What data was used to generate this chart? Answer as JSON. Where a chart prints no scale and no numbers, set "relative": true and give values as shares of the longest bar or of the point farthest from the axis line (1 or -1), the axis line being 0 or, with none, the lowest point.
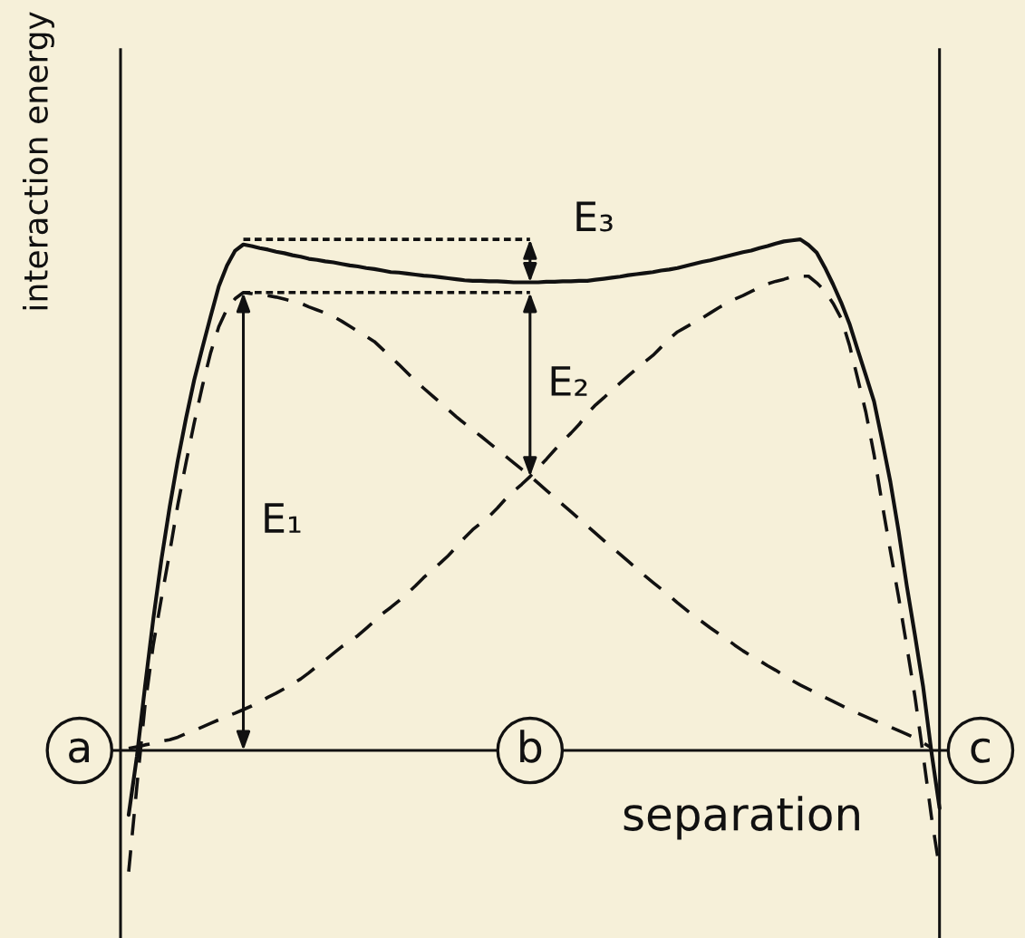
{
  "chart_data": {
    "type": "line",
    "relative": true,
    "ylabel": "interaction energy",
    "xlabel": "separation",
    "tick_labels": "x",
    "categories": [
      "a",
      null,
      null,
      null,
      null,
      null,
      null,
      null,
      null,
      null,
      null,
      null,
      null,
      null,
      null,
      null,
      null,
      null,
      null,
      null,
      null,
      null,
      null,
      null,
      null,
      null,
      null,
      null,
      null,
      null,
      null,
      null,
      null,
      null,
      null,
      null,
      null,
      null,
      null,
      null,
      null,
      null,
      null,
      null,
      null,
      null,
      null,
      null,
      null,
      null,
      null,
      null,
      null,
      null,
      null,
      "b",
      null,
      null,
      null,
      null,
      null,
      null,
      null,
      null,
      null,
      null,
      null,
      null,
      null,
      null,
      null,
      null,
      null,
      null,
      null,
      null,
      null,
      null,
      null,
      null,
      null,
      null,
      null,
      null,
      null,
      null,
      null,
      null,
      null,
      null,
      null,
      null,
      null,
      null,
      null,
      null,
      null,
      null,
      null,
      null,
      null,
      null,
      null,
      null,
      null,
      null,
      null,
      null,
      null,
      null,
      "c"
    ],
    "series": [
      {
        "color": "#111111",
        "line_style": "solid",
        "values": [
          null,
          null,
          null,
          null,
          null,
          null,
          -0.126,
          -0.012,
          0.126,
          0.257,
          0.374,
          0.476,
          0.568,
          0.65,
          0.725,
          0.788,
          0.849,
          0.908,
          0.949,
          0.978,
          0.99,
          0.987,
          0.983,
          0.98,
          0.976,
          0.973,
          0.969,
          0.966,
          0.962,
          0.96,
          0.957,
          0.955,
          0.952,
          0.949,
          0.947,
          0.944,
          0.942,
          0.939,
          0.936,
          0.935,
          0.933,
          0.931,
          0.929,
          0.928,
          0.926,
          0.924,
          0.922,
          0.92,
          0.919,
          0.919,
          0.918,
          0.918,
          0.917,
          0.916,
          0.916,
          0.916,
          0.916,
          0.917,
          0.917,
          0.918,
          0.918,
          0.919,
          0.919,
          0.921,
          0.923,
          0.925,
          0.927,
          0.93,
          0.932,
          0.934,
          0.936,
          0.939,
          0.941,
          0.944,
          0.948,
          0.952,
          0.956,
          0.959,
          0.963,
          0.967,
          0.971,
          0.975,
          0.978,
          0.983,
          0.987,
          0.992,
          0.996,
          0.998,
          1.0,
          0.989,
          0.974,
          0.945,
          0.912,
          0.876,
          0.835,
          0.784,
          0.734,
          0.683,
          0.606,
          0.525,
          0.429,
          0.322,
          0.225,
          0.124,
          -0.002,
          -0.113,
          null,
          null,
          null,
          null,
          null
        ]
      },
      {
        "color": "#111111",
        "line_style": "dashed",
        "values": [
          null,
          null,
          null,
          null,
          null,
          null,
          -0.237,
          -0.07,
          0.089,
          0.206,
          0.298,
          0.387,
          0.481,
          0.563,
          0.641,
          0.713,
          0.778,
          0.829,
          0.864,
          0.884,
          0.896,
          0.894,
          0.892,
          0.89,
          0.887,
          0.883,
          0.879,
          0.875,
          0.868,
          0.862,
          0.856,
          0.849,
          0.84,
          0.83,
          0.82,
          0.81,
          0.8,
          0.785,
          0.77,
          0.755,
          0.739,
          0.723,
          0.709,
          0.695,
          0.681,
          0.667,
          0.653,
          0.64,
          0.627,
          0.615,
          0.602,
          0.589,
          0.576,
          0.563,
          0.55,
          0.537,
          0.523,
          0.509,
          0.495,
          0.481,
          0.467,
          0.453,
          0.439,
          0.425,
          0.411,
          0.397,
          0.384,
          0.37,
          0.356,
          0.342,
          0.329,
          0.316,
          0.303,
          0.289,
          0.276,
          0.263,
          0.252,
          0.24,
          0.229,
          0.218,
          0.206,
          0.195,
          0.185,
          0.176,
          0.166,
          0.157,
          0.147,
          0.137,
          0.128,
          0.12,
          0.112,
          0.104,
          0.096,
          0.088,
          0.08,
          0.073,
          0.066,
          0.059,
          0.052,
          0.046,
          0.039,
          0.032,
          0.024,
          0.015,
          0.005,
          null,
          null,
          null,
          null,
          null,
          null
        ]
      },
      {
        "color": "#111111",
        "line_style": "dashed",
        "values": [
          null,
          null,
          null,
          null,
          null,
          null,
          0.004,
          0.007,
          0.011,
          0.014,
          0.018,
          0.021,
          0.026,
          0.033,
          0.039,
          0.046,
          0.053,
          0.06,
          0.067,
          0.073,
          0.08,
          0.087,
          0.095,
          0.104,
          0.112,
          0.121,
          0.13,
          0.14,
          0.152,
          0.165,
          0.177,
          0.19,
          0.203,
          0.213,
          0.225,
          0.239,
          0.253,
          0.268,
          0.28,
          0.293,
          0.307,
          0.322,
          0.338,
          0.352,
          0.366,
          0.381,
          0.398,
          0.416,
          0.432,
          0.445,
          0.458,
          0.474,
          0.492,
          0.507,
          0.521,
          0.536,
          0.553,
          0.57,
          0.588,
          0.605,
          0.621,
          0.638,
          0.659,
          0.676,
          0.69,
          0.705,
          0.719,
          0.733,
          0.747,
          0.76,
          0.773,
          0.789,
          0.805,
          0.819,
          0.828,
          0.837,
          0.846,
          0.856,
          0.866,
          0.875,
          0.883,
          0.89,
          0.898,
          0.906,
          0.913,
          0.918,
          0.922,
          0.927,
          0.928,
          0.928,
          0.915,
          0.899,
          0.875,
          0.845,
          0.793,
          0.728,
          0.662,
          0.579,
          0.482,
          0.39,
          0.3,
          0.204,
          0.105,
          -0.009,
          -0.129,
          -0.232,
          null,
          null,
          null,
          null,
          null
        ]
      },
      {
        "color": "#111111",
        "line_style": "dotted",
        "values": [
          null,
          null,
          null,
          null,
          null,
          null,
          null,
          null,
          null,
          null,
          null,
          null,
          null,
          null,
          null,
          null,
          null,
          null,
          null,
          null,
          1.0,
          1.0,
          1.0,
          1.0,
          1.0,
          1.0,
          1.0,
          1.0,
          1.0,
          1.0,
          1.0,
          1.0,
          1.0,
          1.0,
          1.0,
          1.0,
          1.0,
          1.0,
          1.0,
          1.0,
          1.0,
          1.0,
          1.0,
          1.0,
          1.0,
          1.0,
          1.0,
          1.0,
          1.0,
          1.0,
          1.0,
          1.0,
          1.0,
          1.0,
          1.0,
          1.0,
          null,
          null,
          null,
          null,
          null,
          null,
          null,
          null,
          null,
          null,
          null,
          null,
          null,
          null,
          null,
          null,
          null,
          null,
          null,
          null,
          null,
          null,
          null,
          null,
          null,
          null,
          null,
          null,
          null,
          null,
          null,
          null,
          null,
          null,
          null,
          null,
          null,
          null,
          null,
          null,
          null,
          null,
          null,
          null,
          null,
          null,
          null,
          null,
          null,
          null,
          null,
          null,
          null,
          null,
          null
        ]
      },
      {
        "color": "#111111",
        "line_style": "dotted",
        "values": [
          null,
          null,
          null,
          null,
          null,
          null,
          null,
          null,
          null,
          null,
          null,
          null,
          null,
          null,
          null,
          null,
          null,
          null,
          null,
          null,
          0.896,
          0.896,
          0.896,
          0.896,
          0.896,
          0.896,
          0.896,
          0.896,
          0.896,
          0.896,
          0.896,
          0.896,
          0.896,
          0.896,
          0.896,
          0.896,
          0.896,
          0.896,
          0.896,
          0.896,
          0.896,
          0.896,
          0.896,
          0.896,
          0.896,
          0.896,
          0.896,
          0.896,
          0.896,
          0.896,
          0.896,
          0.896,
          0.896,
          0.896,
          0.896,
          0.896,
          null,
          null,
          null,
          null,
          null,
          null,
          null,
          null,
          null,
          null,
          null,
          null,
          null,
          null,
          null,
          null,
          null,
          null,
          null,
          null,
          null,
          null,
          null,
          null,
          null,
          null,
          null,
          null,
          null,
          null,
          null,
          null,
          null,
          null,
          null,
          null,
          null,
          null,
          null,
          null,
          null,
          null,
          null,
          null,
          null,
          null,
          null,
          null,
          null,
          null,
          null,
          null,
          null,
          null,
          null
        ]
      }
    ],
    "annotations": [
      "E₁",
      {
        "text": "E₂",
        "x": "b",
        "y": 0.536
      },
      {
        "text": "E₃",
        "x": "b",
        "y": 0.916
      }
    ]
  }
}
